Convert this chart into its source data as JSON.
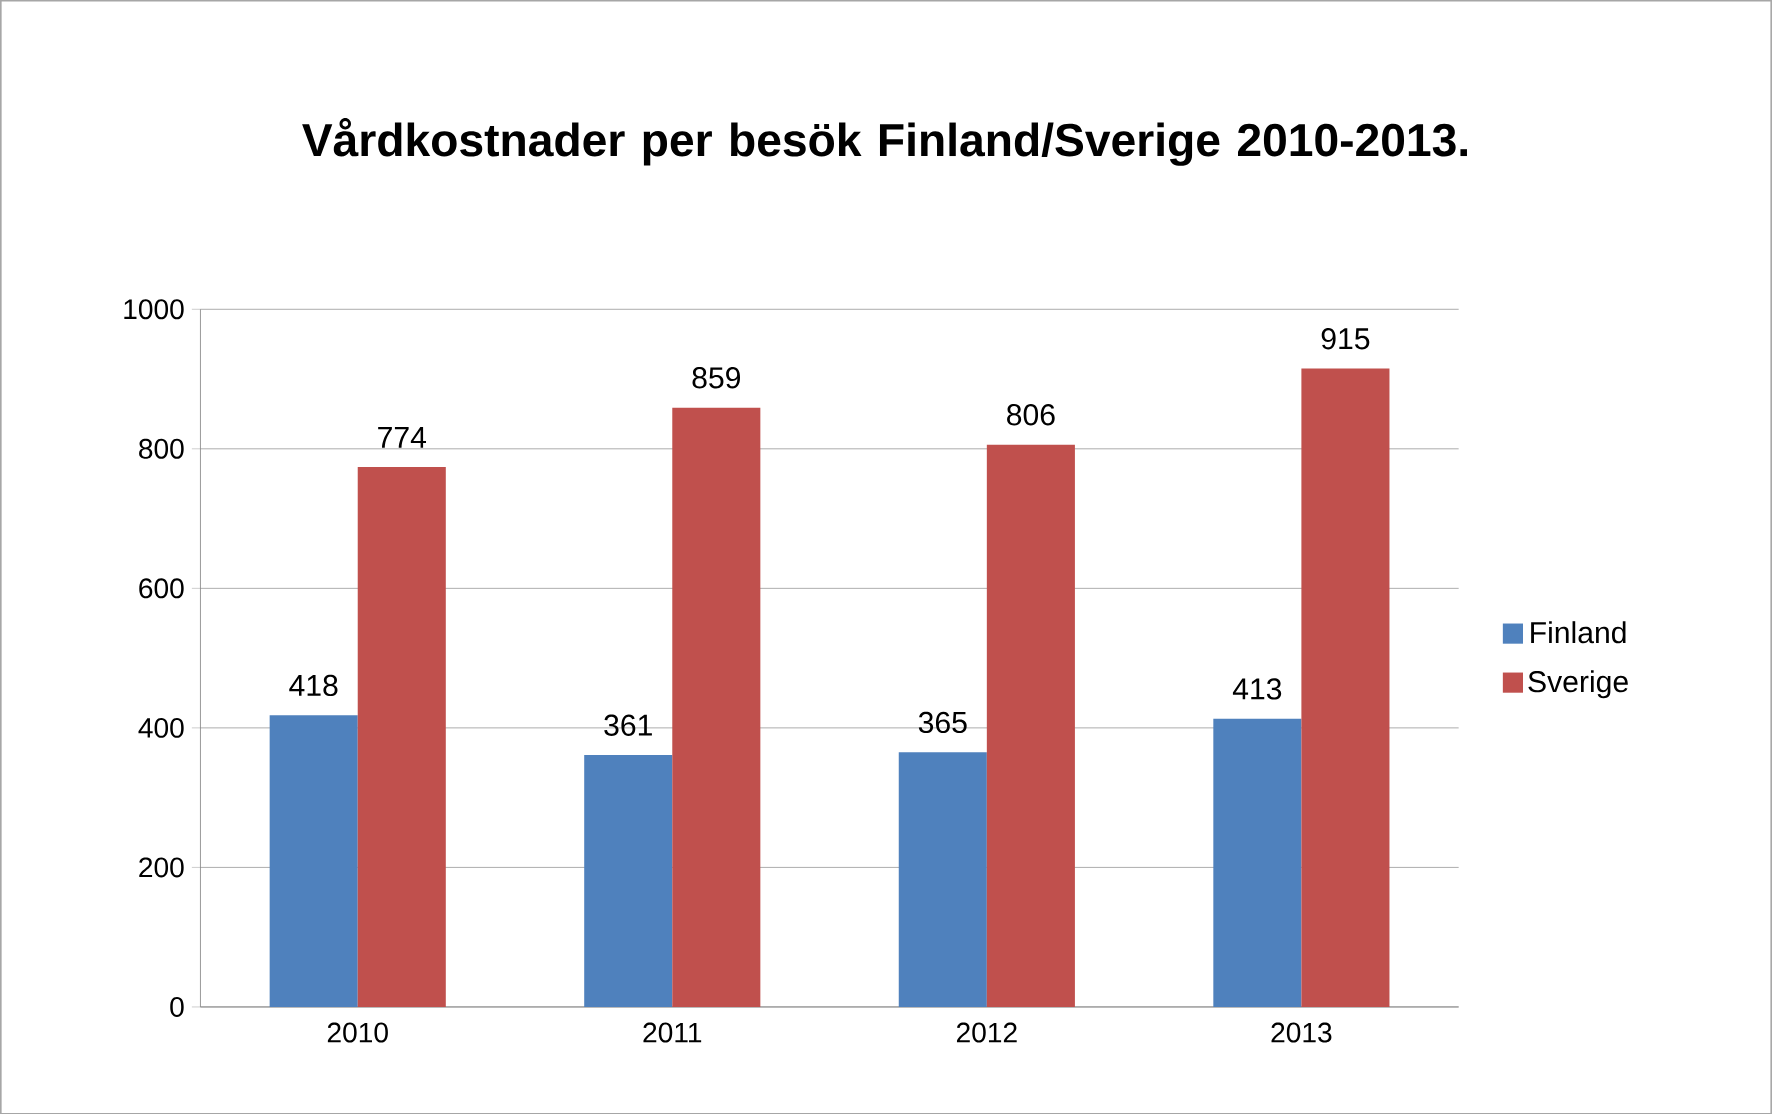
{
  "chart_data": {
    "type": "bar",
    "title": "Vårdkostnader per besök Finland/Sverige 2010-2013.",
    "categories": [
      "2010",
      "2011",
      "2012",
      "2013"
    ],
    "series": [
      {
        "name": "Finland",
        "color": "#4f81bd",
        "values": [
          418,
          361,
          365,
          413
        ]
      },
      {
        "name": "Sverige",
        "color": "#c0504d",
        "values": [
          774,
          859,
          806,
          915
        ]
      }
    ],
    "ylim": [
      0,
      1000
    ],
    "yticks": [
      0,
      200,
      400,
      600,
      800,
      1000
    ],
    "grid": "y",
    "legend": "right",
    "data_labels": true
  }
}
